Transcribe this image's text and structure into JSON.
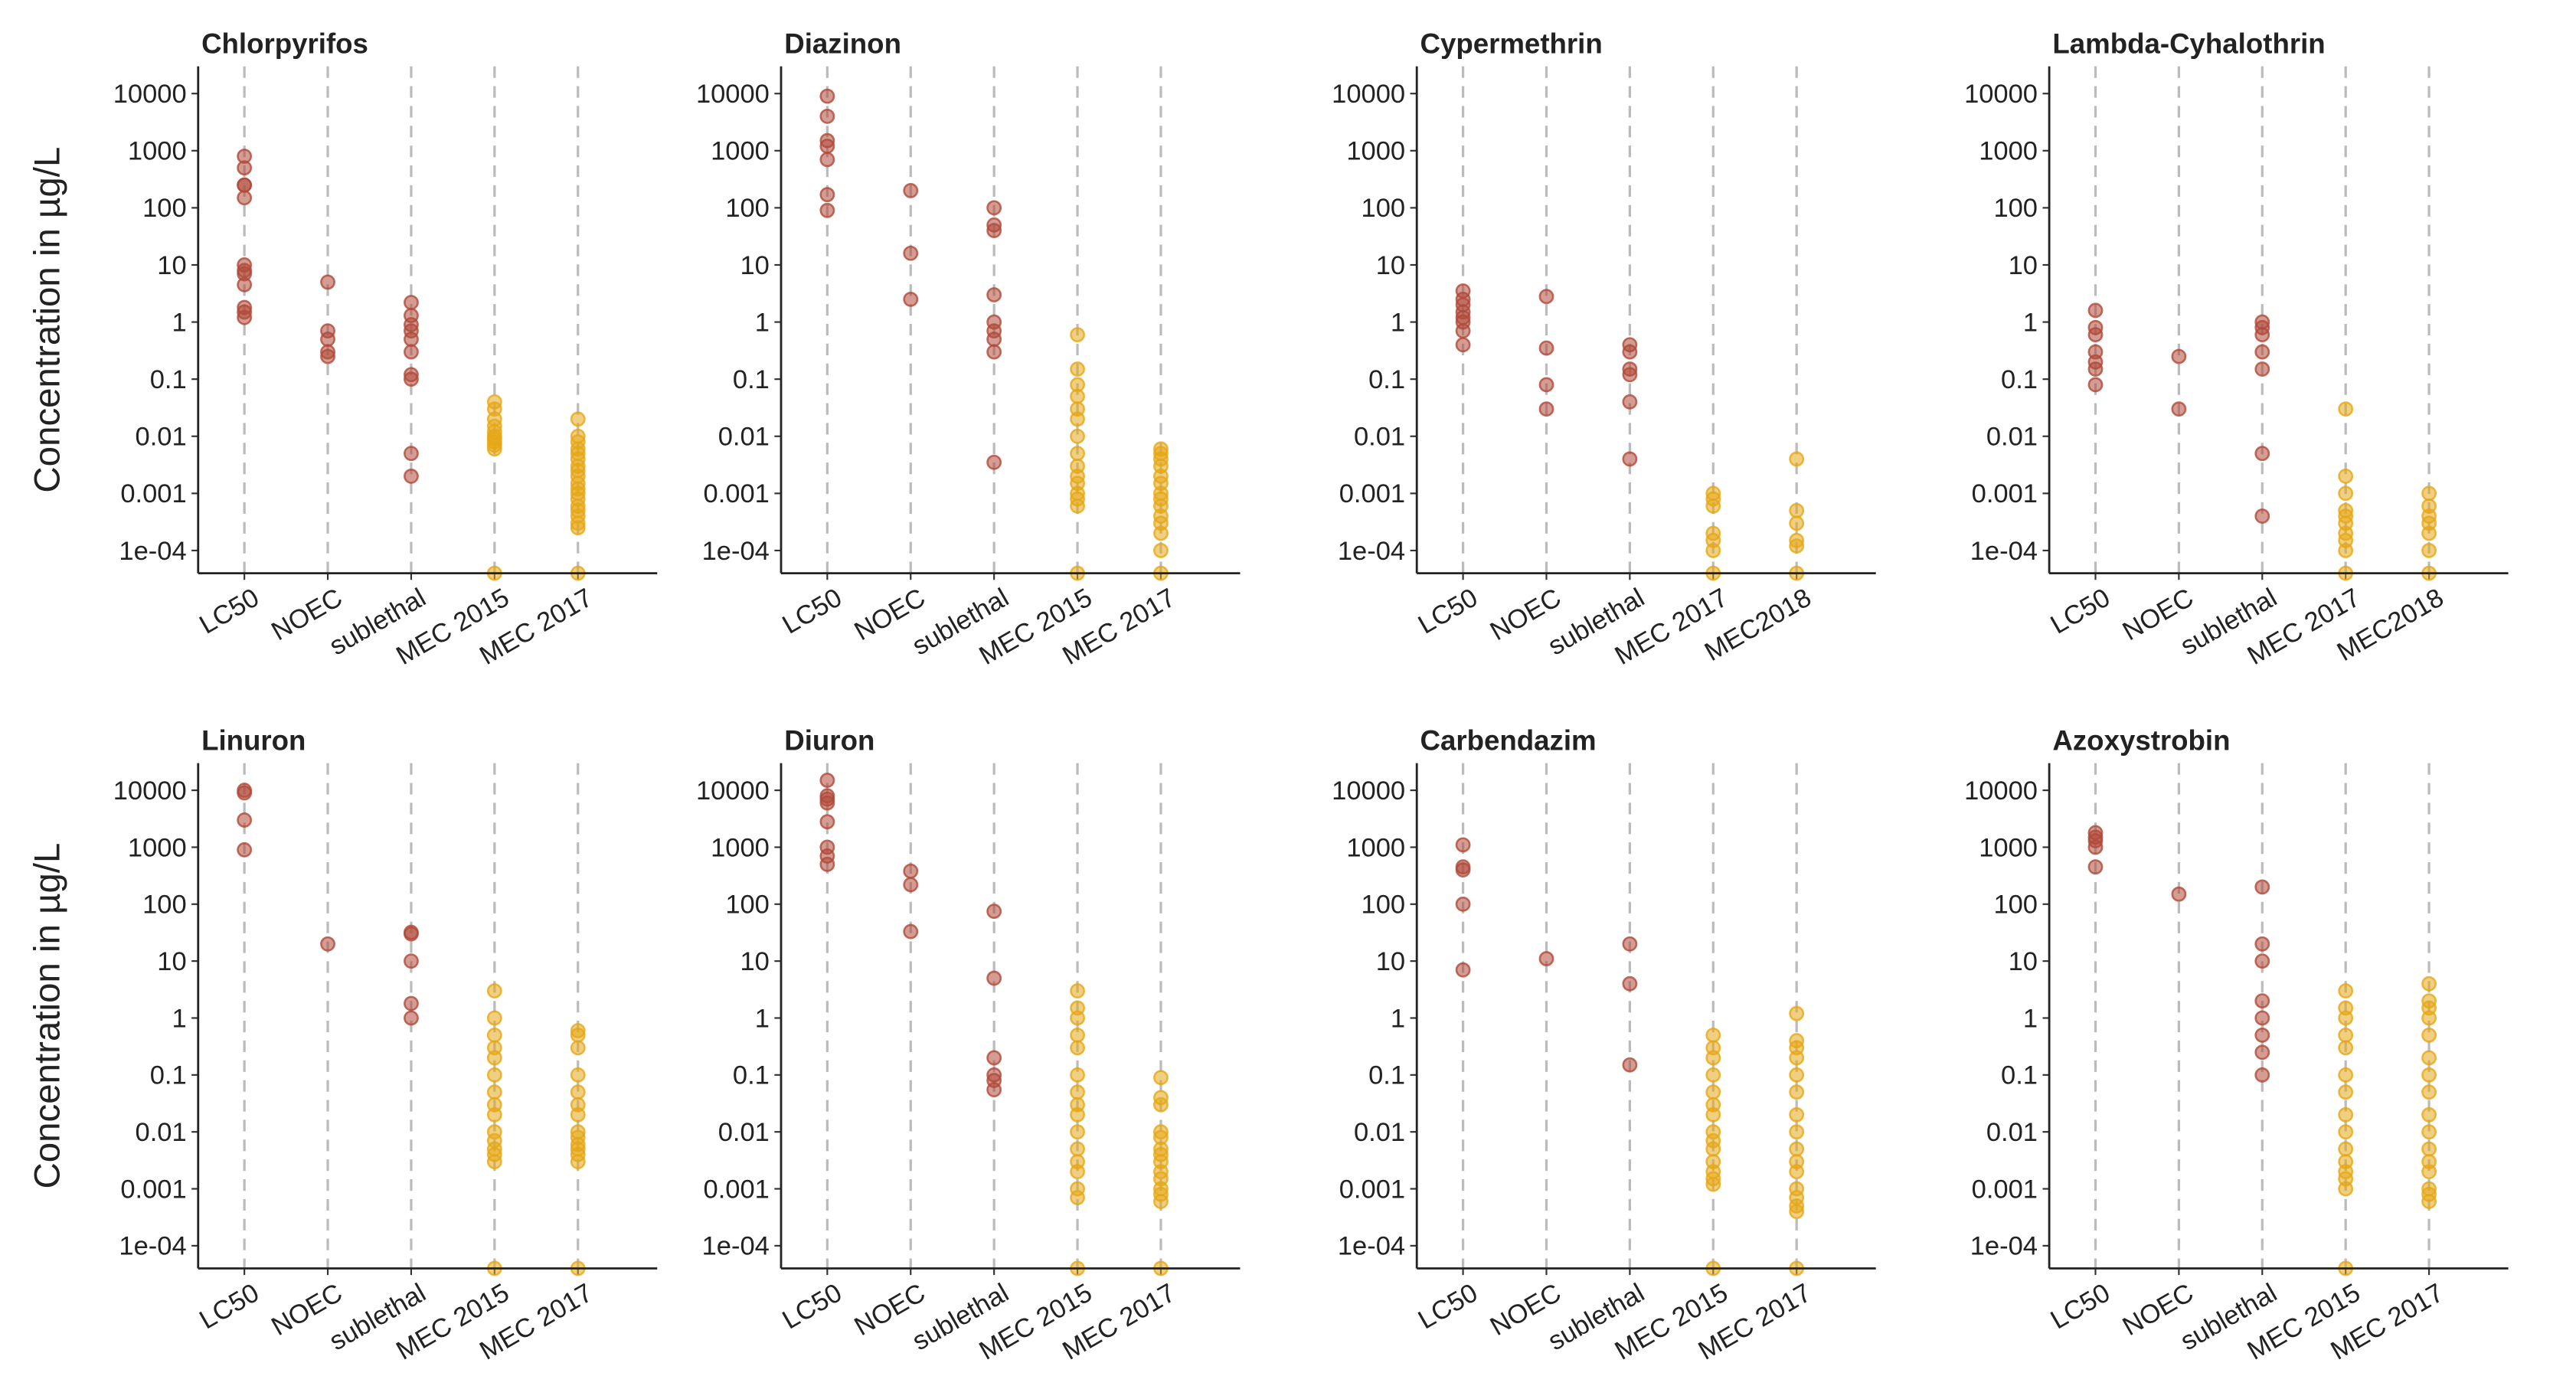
{
  "chart_data": [
    {
      "type": "strip",
      "title": "Chlorpyrifos",
      "ylabel": "Concentration in  µg/L",
      "log": true,
      "grid": "x",
      "categories": [
        "LC50",
        "NOEC",
        "sublethal",
        "MEC 2015",
        "MEC 2017"
      ],
      "colors": [
        "#b04a3a",
        "#b04a3a",
        "#b04a3a",
        "#e6a817",
        "#e6a817"
      ],
      "ylim": [
        4e-05,
        30000
      ],
      "yticks": [
        {
          "value": 0.0001,
          "label": "1e-04"
        },
        0.001,
        0.01,
        0.1,
        1,
        10,
        100,
        1000,
        10000
      ],
      "values": [
        [
          800,
          500,
          250,
          150,
          250,
          10,
          8,
          7,
          4.5,
          1.8,
          1.5,
          1.2
        ],
        [
          5,
          0.7,
          0.5,
          0.3,
          0.25
        ],
        [
          2.2,
          1.3,
          0.9,
          0.7,
          0.5,
          0.3,
          0.12,
          0.1,
          0.005,
          0.002
        ],
        [
          0.04,
          0.03,
          0.02,
          0.015,
          0.012,
          0.01,
          0.009,
          0.008,
          0.007,
          0.006,
          4e-05
        ],
        [
          0.02,
          0.01,
          0.008,
          0.006,
          0.005,
          0.004,
          0.003,
          0.0025,
          0.002,
          0.0015,
          0.0012,
          0.001,
          0.0008,
          0.0006,
          0.0005,
          0.0004,
          0.0003,
          0.00025,
          4e-05
        ]
      ]
    },
    {
      "type": "strip",
      "title": "Diazinon",
      "log": true,
      "grid": "x",
      "categories": [
        "LC50",
        "NOEC",
        "sublethal",
        "MEC 2015",
        "MEC 2017"
      ],
      "colors": [
        "#b04a3a",
        "#b04a3a",
        "#b04a3a",
        "#e6a817",
        "#e6a817"
      ],
      "ylim": [
        4e-05,
        30000
      ],
      "yticks": [
        {
          "value": 0.0001,
          "label": "1e-04"
        },
        0.001,
        0.01,
        0.1,
        1,
        10,
        100,
        1000,
        10000
      ],
      "values": [
        [
          9000,
          4000,
          1500,
          1200,
          700,
          170,
          90
        ],
        [
          200,
          16,
          2.5
        ],
        [
          100,
          50,
          40,
          3,
          1,
          0.7,
          0.5,
          0.3,
          0.0035
        ],
        [
          0.6,
          0.15,
          0.08,
          0.05,
          0.03,
          0.02,
          0.01,
          0.005,
          0.003,
          0.002,
          0.0015,
          0.001,
          0.0008,
          0.0006,
          4e-05
        ],
        [
          0.006,
          0.005,
          0.004,
          0.003,
          0.002,
          0.0015,
          0.001,
          0.0008,
          0.0006,
          0.0004,
          0.0003,
          0.0002,
          0.0001,
          4e-05
        ]
      ]
    },
    {
      "type": "strip",
      "title": "Cypermethrin",
      "log": true,
      "grid": "x",
      "categories": [
        "LC50",
        "NOEC",
        "sublethal",
        "MEC 2017",
        "MEC2018"
      ],
      "colors": [
        "#b04a3a",
        "#b04a3a",
        "#b04a3a",
        "#e6a817",
        "#e6a817"
      ],
      "ylim": [
        4e-05,
        30000
      ],
      "yticks": [
        {
          "value": 0.0001,
          "label": "1e-04"
        },
        0.001,
        0.01,
        0.1,
        1,
        10,
        100,
        1000,
        10000
      ],
      "values": [
        [
          3.5,
          2.5,
          2,
          1.5,
          1.2,
          1,
          0.7,
          0.4
        ],
        [
          2.8,
          0.35,
          0.08,
          0.03
        ],
        [
          0.4,
          0.3,
          0.15,
          0.12,
          0.04,
          0.004
        ],
        [
          0.001,
          0.0008,
          0.0006,
          0.0002,
          0.00015,
          0.0001,
          4e-05
        ],
        [
          0.004,
          0.0005,
          0.0003,
          0.00015,
          0.00012,
          4e-05
        ]
      ]
    },
    {
      "type": "strip",
      "title": "Lambda-Cyhalothrin",
      "log": true,
      "grid": "x",
      "categories": [
        "LC50",
        "NOEC",
        "sublethal",
        "MEC 2017",
        "MEC2018"
      ],
      "colors": [
        "#b04a3a",
        "#b04a3a",
        "#b04a3a",
        "#e6a817",
        "#e6a817"
      ],
      "ylim": [
        4e-05,
        30000
      ],
      "yticks": [
        {
          "value": 0.0001,
          "label": "1e-04"
        },
        0.001,
        0.01,
        0.1,
        1,
        10,
        100,
        1000,
        10000
      ],
      "values": [
        [
          1.6,
          0.8,
          0.6,
          0.3,
          0.2,
          0.15,
          0.08
        ],
        [
          0.25,
          0.03
        ],
        [
          1,
          0.8,
          0.6,
          0.3,
          0.15,
          0.005,
          0.0004
        ],
        [
          0.03,
          0.002,
          0.001,
          0.0005,
          0.0004,
          0.0003,
          0.0002,
          0.00015,
          0.0001,
          4e-05
        ],
        [
          0.001,
          0.0006,
          0.0004,
          0.0003,
          0.0002,
          0.0001,
          4e-05
        ]
      ]
    },
    {
      "type": "strip",
      "title": "Linuron",
      "ylabel": "Concentration in  µg/L",
      "log": true,
      "grid": "x",
      "categories": [
        "LC50",
        "NOEC",
        "sublethal",
        "MEC 2015",
        "MEC 2017"
      ],
      "colors": [
        "#b04a3a",
        "#b04a3a",
        "#b04a3a",
        "#e6a817",
        "#e6a817"
      ],
      "ylim": [
        4e-05,
        30000
      ],
      "yticks": [
        {
          "value": 0.0001,
          "label": "1e-04"
        },
        0.001,
        0.01,
        0.1,
        1,
        10,
        100,
        1000,
        10000
      ],
      "values": [
        [
          10000,
          9000,
          3000,
          900
        ],
        [
          20
        ],
        [
          32,
          30,
          10,
          1.8,
          1
        ],
        [
          3,
          1,
          0.5,
          0.3,
          0.2,
          0.1,
          0.05,
          0.03,
          0.02,
          0.01,
          0.007,
          0.005,
          0.004,
          0.003,
          4e-05
        ],
        [
          0.6,
          0.5,
          0.3,
          0.1,
          0.05,
          0.03,
          0.02,
          0.01,
          0.008,
          0.006,
          0.005,
          0.004,
          0.003,
          4e-05
        ]
      ]
    },
    {
      "type": "strip",
      "title": "Diuron",
      "log": true,
      "grid": "x",
      "categories": [
        "LC50",
        "NOEC",
        "sublethal",
        "MEC 2015",
        "MEC 2017"
      ],
      "colors": [
        "#b04a3a",
        "#b04a3a",
        "#b04a3a",
        "#e6a817",
        "#e6a817"
      ],
      "ylim": [
        4e-05,
        30000
      ],
      "yticks": [
        {
          "value": 0.0001,
          "label": "1e-04"
        },
        0.001,
        0.01,
        0.1,
        1,
        10,
        100,
        1000,
        10000
      ],
      "values": [
        [
          15000,
          8000,
          7000,
          6000,
          2800,
          1000,
          700,
          500
        ],
        [
          380,
          220,
          33
        ],
        [
          75,
          5,
          0.2,
          0.1,
          0.08,
          0.055
        ],
        [
          3,
          1.5,
          1,
          0.5,
          0.3,
          0.1,
          0.05,
          0.03,
          0.02,
          0.01,
          0.005,
          0.003,
          0.002,
          0.001,
          0.0007,
          4e-05
        ],
        [
          0.09,
          0.04,
          0.03,
          0.01,
          0.008,
          0.005,
          0.004,
          0.003,
          0.002,
          0.0015,
          0.001,
          0.0008,
          0.0006,
          4e-05
        ]
      ]
    },
    {
      "type": "strip",
      "title": "Carbendazim",
      "log": true,
      "grid": "x",
      "categories": [
        "LC50",
        "NOEC",
        "sublethal",
        "MEC 2015",
        "MEC 2017"
      ],
      "colors": [
        "#b04a3a",
        "#b04a3a",
        "#b04a3a",
        "#e6a817",
        "#e6a817"
      ],
      "ylim": [
        4e-05,
        30000
      ],
      "yticks": [
        {
          "value": 0.0001,
          "label": "1e-04"
        },
        0.001,
        0.01,
        0.1,
        1,
        10,
        100,
        1000,
        10000
      ],
      "values": [
        [
          1100,
          450,
          400,
          100,
          7
        ],
        [
          11
        ],
        [
          20,
          4,
          0.15
        ],
        [
          0.5,
          0.3,
          0.2,
          0.1,
          0.05,
          0.03,
          0.02,
          0.01,
          0.007,
          0.005,
          0.003,
          0.002,
          0.0015,
          0.0012,
          4e-05
        ],
        [
          1.2,
          0.4,
          0.3,
          0.2,
          0.1,
          0.05,
          0.02,
          0.01,
          0.005,
          0.003,
          0.002,
          0.001,
          0.0007,
          0.0005,
          0.0004,
          4e-05
        ]
      ]
    },
    {
      "type": "strip",
      "title": "Azoxystrobin",
      "log": true,
      "grid": "x",
      "categories": [
        "LC50",
        "NOEC",
        "sublethal",
        "MEC 2015",
        "MEC 2017"
      ],
      "colors": [
        "#b04a3a",
        "#b04a3a",
        "#b04a3a",
        "#e6a817",
        "#e6a817"
      ],
      "ylim": [
        4e-05,
        30000
      ],
      "yticks": [
        {
          "value": 0.0001,
          "label": "1e-04"
        },
        0.001,
        0.01,
        0.1,
        1,
        10,
        100,
        1000,
        10000
      ],
      "values": [
        [
          1800,
          1500,
          1300,
          1000,
          450
        ],
        [
          150
        ],
        [
          200,
          20,
          10,
          2,
          1,
          0.5,
          0.25,
          0.1
        ],
        [
          3,
          1.5,
          1,
          0.5,
          0.3,
          0.1,
          0.05,
          0.02,
          0.01,
          0.005,
          0.003,
          0.002,
          0.0015,
          0.001,
          4e-05
        ],
        [
          4,
          2,
          1.5,
          1,
          0.5,
          0.2,
          0.1,
          0.05,
          0.02,
          0.01,
          0.005,
          0.003,
          0.002,
          0.001,
          0.0008,
          0.0006
        ]
      ]
    }
  ]
}
